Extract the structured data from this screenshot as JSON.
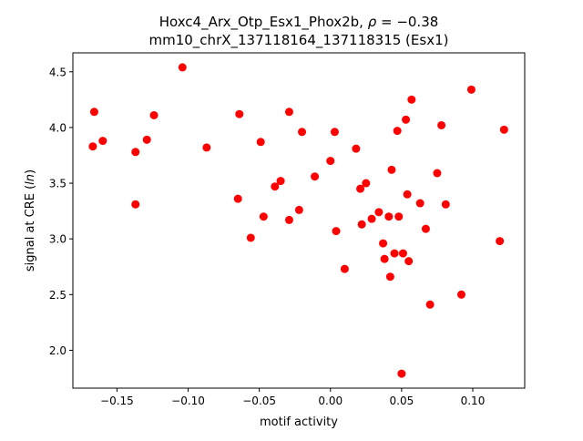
{
  "chart_data": {
    "type": "scatter",
    "title_line1_prefix": "Hoxc4_Arx_Otp_Esx1_Phox2b, ",
    "title_rho_symbol": "ρ",
    "title_rho_value": " = −0.38",
    "title_line2": "mm10_chrX_137118164_137118315 (Esx1)",
    "xlabel": "motif activity",
    "ylabel_prefix": "signal at CRE (",
    "ylabel_italic": "ln",
    "ylabel_suffix": ")",
    "xlim": [
      -0.181,
      0.1365
    ],
    "ylim": [
      1.66,
      4.67
    ],
    "xticks": [
      -0.15,
      -0.1,
      -0.05,
      0.0,
      0.05,
      0.1
    ],
    "xtick_labels": [
      "−0.15",
      "−0.10",
      "−0.05",
      "0.00",
      "0.05",
      "0.10"
    ],
    "yticks": [
      2.0,
      2.5,
      3.0,
      3.5,
      4.0,
      4.5
    ],
    "ytick_labels": [
      "2.0",
      "2.5",
      "3.0",
      "3.5",
      "4.0",
      "4.5"
    ],
    "marker_color": "#ff0000",
    "grid": false,
    "x": [
      -0.166,
      -0.167,
      -0.16,
      -0.137,
      -0.137,
      -0.129,
      -0.124,
      -0.104,
      -0.087,
      -0.064,
      -0.065,
      -0.056,
      -0.049,
      -0.047,
      -0.039,
      -0.035,
      -0.029,
      -0.029,
      -0.022,
      -0.02,
      -0.011,
      0.0,
      0.003,
      0.004,
      0.01,
      0.018,
      0.021,
      0.022,
      0.025,
      0.029,
      0.034,
      0.037,
      0.038,
      0.041,
      0.043,
      0.042,
      0.045,
      0.047,
      0.048,
      0.051,
      0.053,
      0.054,
      0.055,
      0.057,
      0.05,
      0.063,
      0.067,
      0.07,
      0.075,
      0.078,
      0.081,
      0.092,
      0.099,
      0.119,
      0.122
    ],
    "y": [
      4.14,
      3.83,
      3.88,
      3.78,
      3.31,
      3.89,
      4.11,
      4.54,
      3.82,
      4.12,
      3.36,
      3.01,
      3.87,
      3.2,
      3.47,
      3.52,
      4.14,
      3.17,
      3.26,
      3.96,
      3.56,
      3.7,
      3.96,
      3.07,
      2.73,
      3.81,
      3.45,
      3.13,
      3.5,
      3.18,
      3.24,
      2.96,
      2.82,
      3.2,
      3.62,
      2.66,
      2.87,
      3.97,
      3.2,
      2.87,
      4.07,
      3.4,
      2.8,
      4.25,
      1.79,
      3.32,
      3.09,
      2.41,
      3.59,
      4.02,
      3.31,
      2.5,
      4.34,
      2.98,
      3.98
    ]
  }
}
